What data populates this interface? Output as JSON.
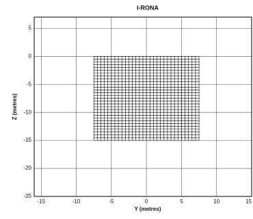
{
  "chart_data": {
    "type": "mesh",
    "title": "I-RONA",
    "xlabel": "Y (metres)",
    "ylabel": "Z (metres)",
    "xlim": [
      -16,
      15
    ],
    "xticks": [
      -15,
      -10,
      -5,
      0,
      5,
      10,
      15
    ],
    "ylim": [
      -25,
      7
    ],
    "yticks": [
      5,
      0,
      -5,
      -10,
      -15,
      -20,
      -25
    ],
    "grid": true,
    "color": "#000000",
    "mesh": {
      "x": [
        -7.5,
        -7,
        -6.5,
        -6,
        -5.5,
        -5,
        -4.5,
        -4,
        -3.5,
        -3,
        -2.5,
        -2,
        -1.5,
        -1,
        -0.5,
        0,
        0.5,
        1,
        1.5,
        2,
        2.5,
        3,
        3.5,
        4,
        4.5,
        5,
        5.5,
        6,
        6.5,
        7,
        7.5
      ],
      "z": [
        0,
        -0.5,
        -1,
        -1.5,
        -2,
        -2.5,
        -3,
        -3.5,
        -4,
        -4.5,
        -5,
        -5.5,
        -6,
        -6.5,
        -7,
        -7.5,
        -8,
        -8.5,
        -9,
        -9.5,
        -10,
        -10.5,
        -11,
        -11.5,
        -12,
        -12.5,
        -13,
        -13.5,
        -14,
        -14.5,
        -15
      ]
    }
  }
}
